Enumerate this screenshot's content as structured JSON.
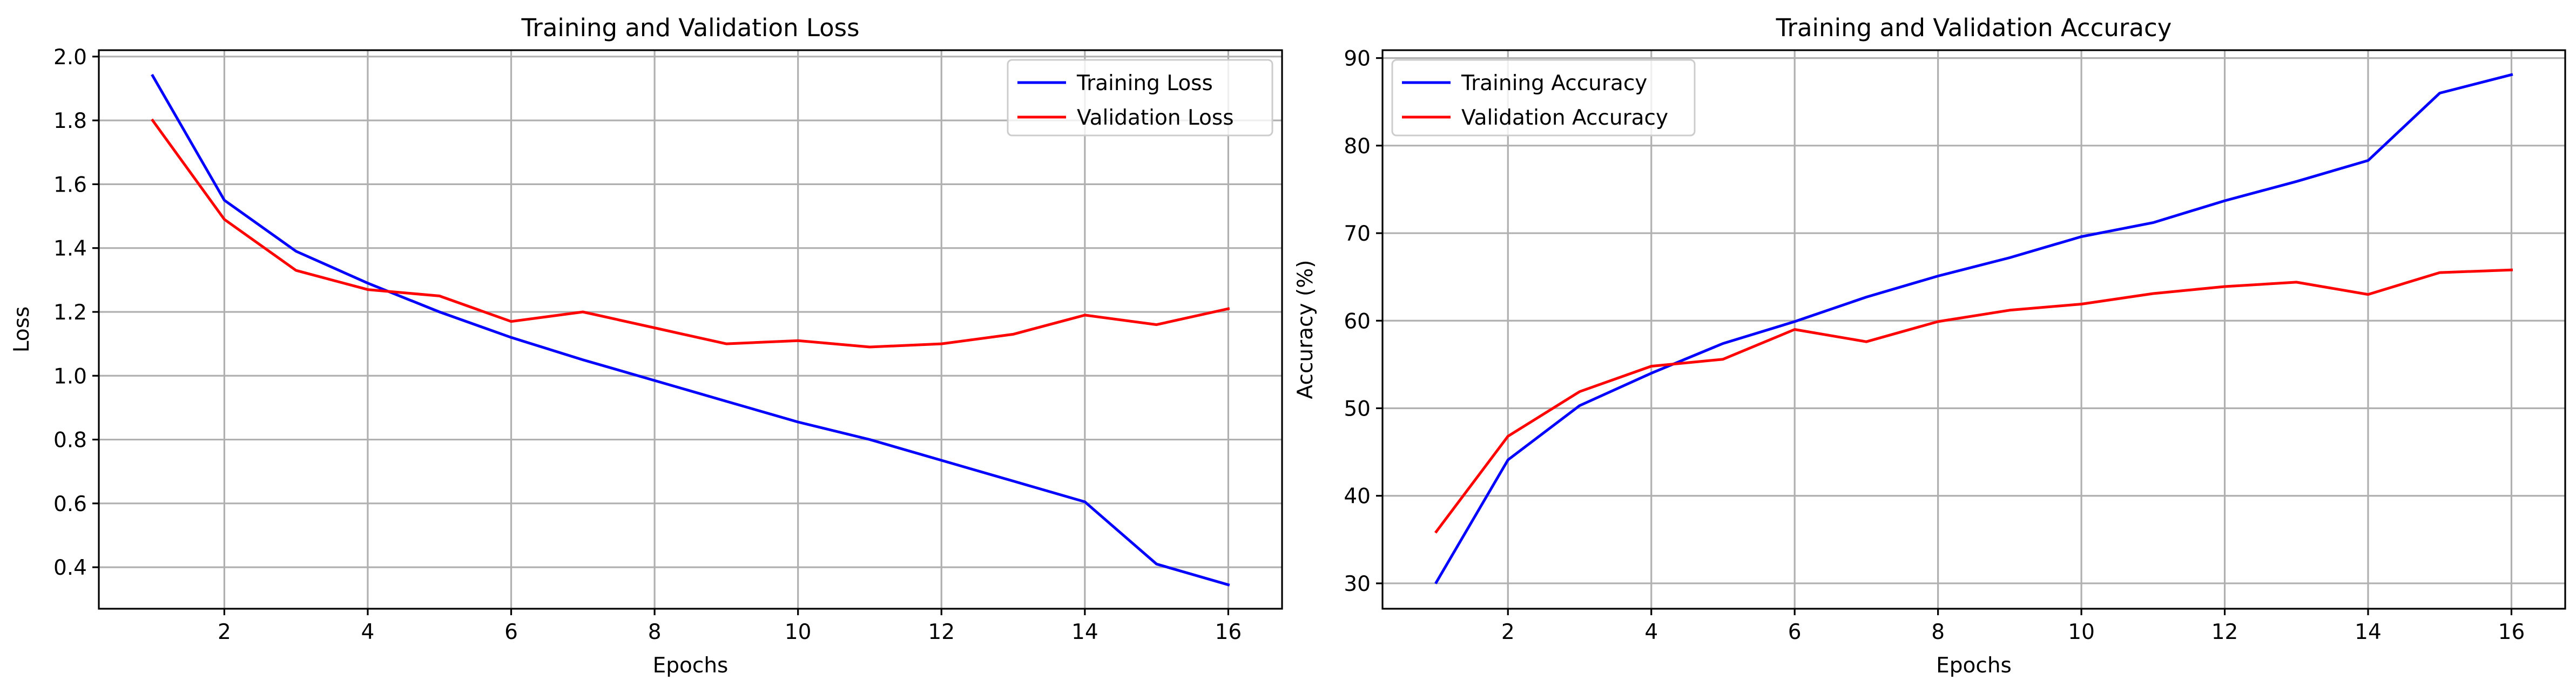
{
  "chart_data": [
    {
      "type": "line",
      "title": "Training and Validation Loss",
      "xlabel": "Epochs",
      "ylabel": "Loss",
      "x": [
        1,
        2,
        3,
        4,
        5,
        6,
        7,
        8,
        9,
        10,
        11,
        12,
        13,
        14,
        15,
        16
      ],
      "xlim": [
        0.25,
        16.75
      ],
      "ylim": [
        0.27,
        2.02
      ],
      "xticks": [
        2,
        4,
        6,
        8,
        10,
        12,
        14,
        16
      ],
      "yticks": [
        0.4,
        0.6,
        0.8,
        1.0,
        1.2,
        1.4,
        1.6,
        1.8,
        2.0
      ],
      "xtick_labels": [
        "2",
        "4",
        "6",
        "8",
        "10",
        "12",
        "14",
        "16"
      ],
      "ytick_labels": [
        "0.4",
        "0.6",
        "0.8",
        "1.0",
        "1.2",
        "1.4",
        "1.6",
        "1.8",
        "2.0"
      ],
      "grid": true,
      "legend_position": "top-right",
      "series": [
        {
          "name": "Training Loss",
          "color": "#0000ff",
          "values": [
            1.94,
            1.55,
            1.39,
            1.29,
            1.2,
            1.12,
            1.05,
            0.985,
            0.92,
            0.855,
            0.8,
            0.735,
            0.67,
            0.605,
            0.41,
            0.345
          ]
        },
        {
          "name": "Validation Loss",
          "color": "#ff0000",
          "values": [
            1.8,
            1.49,
            1.33,
            1.27,
            1.25,
            1.17,
            1.2,
            1.15,
            1.1,
            1.11,
            1.09,
            1.1,
            1.13,
            1.19,
            1.16,
            1.21
          ]
        }
      ]
    },
    {
      "type": "line",
      "title": "Training and Validation Accuracy",
      "xlabel": "Epochs",
      "ylabel": "Accuracy (%)",
      "x": [
        1,
        2,
        3,
        4,
        5,
        6,
        7,
        8,
        9,
        10,
        11,
        12,
        13,
        14,
        15,
        16
      ],
      "xlim": [
        0.25,
        16.75
      ],
      "ylim": [
        27.1,
        90.9
      ],
      "xticks": [
        2,
        4,
        6,
        8,
        10,
        12,
        14,
        16
      ],
      "yticks": [
        30,
        40,
        50,
        60,
        70,
        80,
        90
      ],
      "xtick_labels": [
        "2",
        "4",
        "6",
        "8",
        "10",
        "12",
        "14",
        "16"
      ],
      "ytick_labels": [
        "30",
        "40",
        "50",
        "60",
        "70",
        "80",
        "90"
      ],
      "grid": true,
      "legend_position": "top-left",
      "series": [
        {
          "name": "Training Accuracy",
          "color": "#0000ff",
          "values": [
            30.1,
            44.1,
            50.3,
            54.0,
            57.4,
            59.9,
            62.7,
            65.1,
            67.2,
            69.6,
            71.2,
            73.7,
            75.9,
            78.3,
            86.0,
            88.1
          ]
        },
        {
          "name": "Validation Accuracy",
          "color": "#ff0000",
          "values": [
            35.9,
            46.8,
            51.9,
            54.8,
            55.6,
            59.0,
            57.6,
            59.9,
            61.2,
            61.9,
            63.1,
            63.9,
            64.4,
            63.0,
            65.5,
            65.8
          ]
        }
      ]
    }
  ]
}
